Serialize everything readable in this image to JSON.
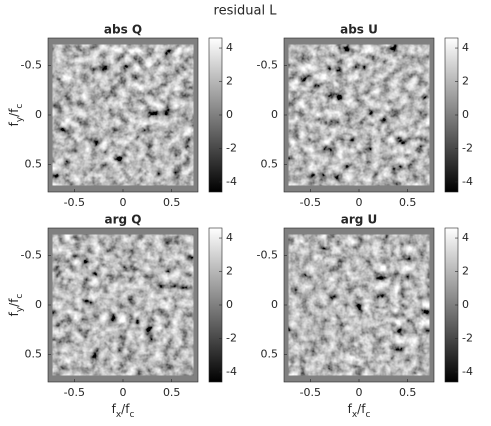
{
  "title": "residual L",
  "chart_data": [
    {
      "type": "image",
      "title": "abs Q",
      "ylabel": [
        "f",
        "y",
        "/f",
        "c"
      ],
      "xlim": [
        -0.77,
        0.77
      ],
      "ylim": [
        -0.78,
        0.78
      ],
      "yreverse": true,
      "xticks": [
        -0.5,
        0,
        0.5
      ],
      "yticks": [
        -0.5,
        0,
        0.5
      ],
      "colormap": "gray",
      "clim": [
        -4.6,
        4.6
      ],
      "cticks": [
        4,
        2,
        0,
        -2,
        -4
      ]
    },
    {
      "type": "image",
      "title": "abs U",
      "xlim": [
        -0.77,
        0.77
      ],
      "ylim": [
        -0.78,
        0.78
      ],
      "yreverse": true,
      "xticks": [
        -0.5,
        0,
        0.5
      ],
      "yticks": [
        -0.5,
        0,
        0.5
      ],
      "colormap": "gray",
      "clim": [
        -4.6,
        4.6
      ],
      "cticks": [
        4,
        2,
        0,
        -2,
        -4
      ]
    },
    {
      "type": "image",
      "title": "arg Q",
      "ylabel": [
        "f",
        "y",
        "/f",
        "c"
      ],
      "xlabel": [
        "f",
        "x",
        "/f",
        "c"
      ],
      "xlim": [
        -0.77,
        0.77
      ],
      "ylim": [
        -0.78,
        0.78
      ],
      "yreverse": true,
      "xticks": [
        -0.5,
        0,
        0.5
      ],
      "yticks": [
        -0.5,
        0,
        0.5
      ],
      "colormap": "gray",
      "clim": [
        -4.6,
        4.6
      ],
      "cticks": [
        4,
        2,
        0,
        -2,
        -4
      ]
    },
    {
      "type": "image",
      "title": "arg U",
      "xlabel": [
        "f",
        "x",
        "/f",
        "c"
      ],
      "xlim": [
        -0.77,
        0.77
      ],
      "ylim": [
        -0.78,
        0.78
      ],
      "yreverse": true,
      "xticks": [
        -0.5,
        0,
        0.5
      ],
      "yticks": [
        -0.5,
        0,
        0.5
      ],
      "colormap": "gray",
      "clim": [
        -4.6,
        4.6
      ],
      "cticks": [
        4,
        2,
        0,
        -2,
        -4
      ]
    }
  ]
}
